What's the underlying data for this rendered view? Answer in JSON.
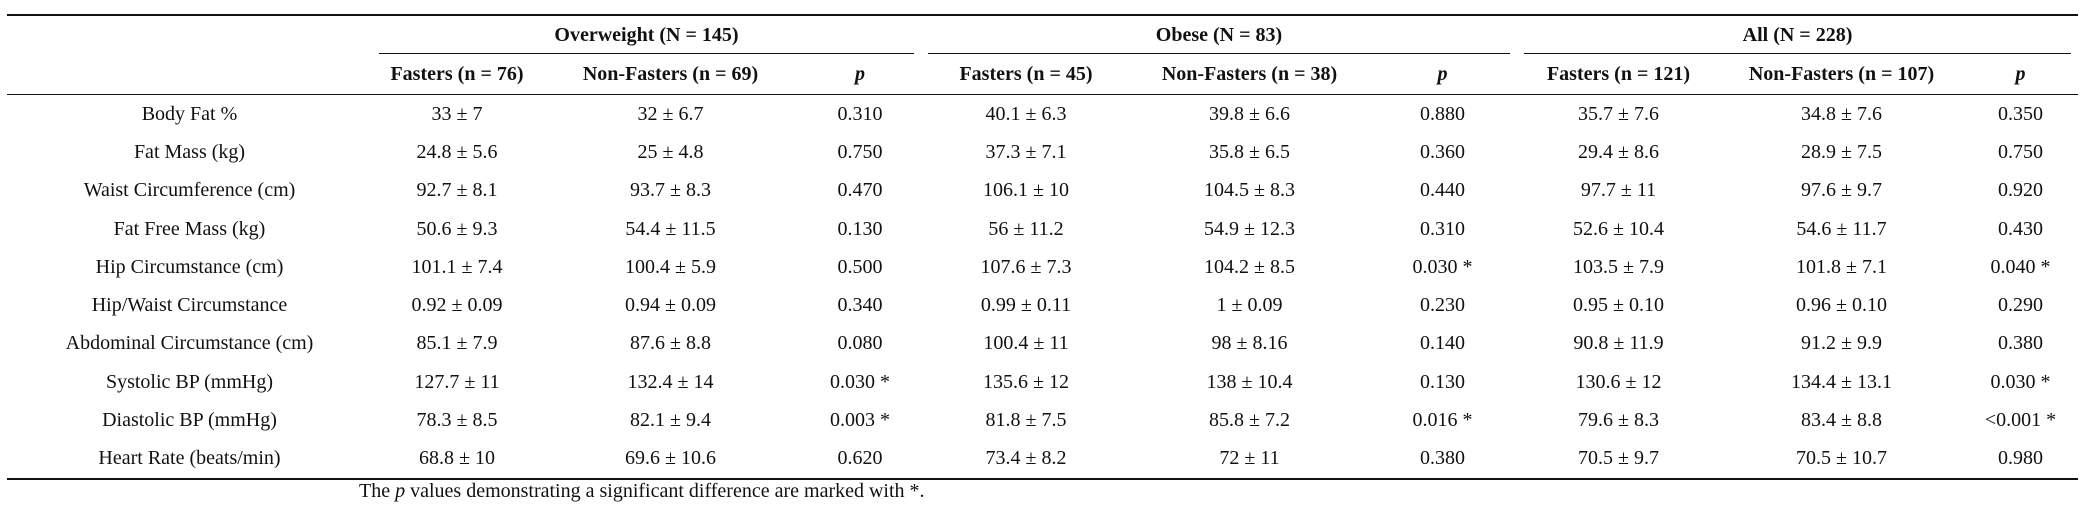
{
  "table": {
    "groups": [
      "Overweight (N = 145)",
      "Obese (N = 83)",
      "All (N = 228)"
    ],
    "columns": [
      "Fasters (n = 76)",
      "Non-Fasters (n = 69)",
      "p",
      "Fasters (n = 45)",
      "Non-Fasters (n = 38)",
      "p",
      "Fasters (n = 121)",
      "Non-Fasters (n = 107)",
      "p"
    ],
    "rows": [
      [
        "Body Fat %",
        "33 ± 7",
        "32 ± 6.7",
        "0.310",
        "40.1 ± 6.3",
        "39.8 ± 6.6",
        "0.880",
        "35.7 ± 7.6",
        "34.8 ± 7.6",
        "0.350"
      ],
      [
        "Fat Mass (kg)",
        "24.8 ± 5.6",
        "25 ± 4.8",
        "0.750",
        "37.3 ± 7.1",
        "35.8 ± 6.5",
        "0.360",
        "29.4 ± 8.6",
        "28.9 ± 7.5",
        "0.750"
      ],
      [
        "Waist Circumference (cm)",
        "92.7 ± 8.1",
        "93.7 ± 8.3",
        "0.470",
        "106.1 ± 10",
        "104.5 ± 8.3",
        "0.440",
        "97.7 ± 11",
        "97.6 ± 9.7",
        "0.920"
      ],
      [
        "Fat Free Mass (kg)",
        "50.6 ± 9.3",
        "54.4 ± 11.5",
        "0.130",
        "56 ± 11.2",
        "54.9 ± 12.3",
        "0.310",
        "52.6 ± 10.4",
        "54.6 ± 11.7",
        "0.430"
      ],
      [
        "Hip Circumstance (cm)",
        "101.1 ± 7.4",
        "100.4 ± 5.9",
        "0.500",
        "107.6 ± 7.3",
        "104.2 ± 8.5",
        "0.030 *",
        "103.5 ± 7.9",
        "101.8 ± 7.1",
        "0.040 *"
      ],
      [
        "Hip/Waist Circumstance",
        "0.92 ± 0.09",
        "0.94 ± 0.09",
        "0.340",
        "0.99 ± 0.11",
        "1 ± 0.09",
        "0.230",
        "0.95 ± 0.10",
        "0.96 ± 0.10",
        "0.290"
      ],
      [
        "Abdominal Circumstance (cm)",
        "85.1 ± 7.9",
        "87.6 ± 8.8",
        "0.080",
        "100.4 ± 11",
        "98 ± 8.16",
        "0.140",
        "90.8 ± 11.9",
        "91.2 ± 9.9",
        "0.380"
      ],
      [
        "Systolic BP (mmHg)",
        "127.7 ± 11",
        "132.4 ± 14",
        "0.030 *",
        "135.6 ± 12",
        "138 ± 10.4",
        "0.130",
        "130.6 ± 12",
        "134.4 ± 13.1",
        "0.030 *"
      ],
      [
        "Diastolic BP (mmHg)",
        "78.3 ± 8.5",
        "82.1 ± 9.4",
        "0.003 *",
        "81.8 ± 7.5",
        "85.8 ± 7.2",
        "0.016 *",
        "79.6 ± 8.3",
        "83.4 ± 8.8",
        "<0.001 *"
      ],
      [
        "Heart Rate (beats/min)",
        "68.8 ± 10",
        "69.6 ± 10.6",
        "0.620",
        "73.4 ± 8.2",
        "72 ± 11",
        "0.380",
        "70.5 ± 9.7",
        "70.5 ± 10.7",
        "0.980"
      ]
    ]
  },
  "footnote": {
    "before": "The ",
    "italic": "p",
    "after": " values demonstrating a significant difference are marked with *."
  }
}
